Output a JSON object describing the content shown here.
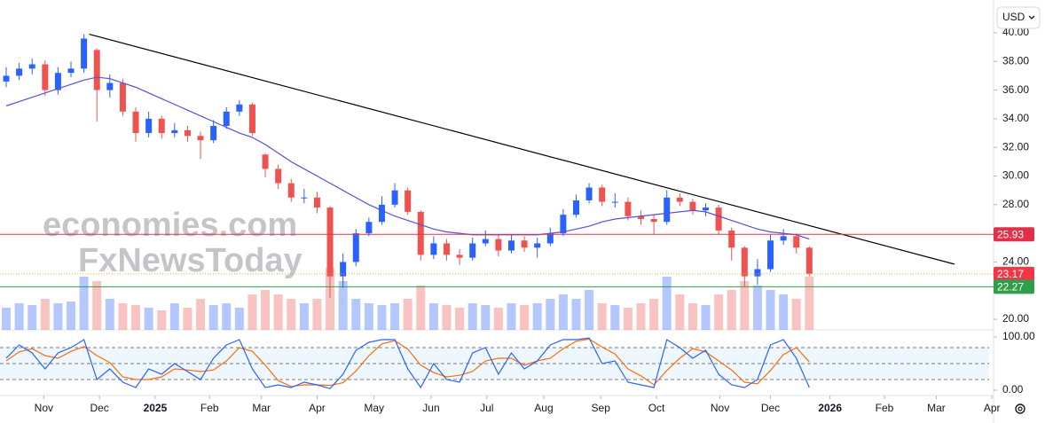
{
  "currency": "USD",
  "chart_data": [
    {
      "type": "candlestick",
      "xlim": [
        -0.48,
        75.88
      ],
      "xticks": [
        {
          "value": 2.9,
          "label": "Nov"
        },
        {
          "value": 7.2,
          "label": "Dec"
        },
        {
          "value": 11.5,
          "label": "2025"
        },
        {
          "value": 15.7,
          "label": "Feb"
        },
        {
          "value": 19.7,
          "label": "Mar"
        },
        {
          "value": 24,
          "label": "Apr"
        },
        {
          "value": 28.4,
          "label": "May"
        },
        {
          "value": 32.8,
          "label": "Jun"
        },
        {
          "value": 37.1,
          "label": "Jul"
        },
        {
          "value": 41.5,
          "label": "Aug"
        },
        {
          "value": 45.9,
          "label": "Sep"
        },
        {
          "value": 50.2,
          "label": "Oct"
        },
        {
          "value": 55.1,
          "label": "Nov"
        },
        {
          "value": 59,
          "label": "Dec"
        },
        {
          "value": 63.6,
          "label": "2026"
        },
        {
          "value": 67.8,
          "label": "Feb"
        },
        {
          "value": 71.8,
          "label": "Mar"
        },
        {
          "value": 76.1,
          "label": "Apr"
        }
      ],
      "ylim": [
        19.26,
        42.29
      ],
      "yticks": [
        {
          "value": 20,
          "label": "20.00"
        },
        {
          "value": 22,
          "label": "22.00"
        },
        {
          "value": 24,
          "label": "24.00"
        },
        {
          "value": 26,
          "label": "26.00"
        },
        {
          "value": 28,
          "label": "28.00"
        },
        {
          "value": 30,
          "label": "30.00"
        },
        {
          "value": 32,
          "label": "32.00"
        },
        {
          "value": 34,
          "label": "34.00"
        },
        {
          "value": 36,
          "label": "36.00"
        },
        {
          "value": 38,
          "label": "38.00"
        },
        {
          "value": 40,
          "label": "40.00"
        }
      ],
      "up_color": "#2962ff",
      "down_color": "#ef5350",
      "open": [
        36.6,
        37,
        37.5,
        37.8,
        36,
        37.2,
        37.5,
        38.8,
        36,
        36.5,
        34.5,
        33,
        34,
        33,
        33.2,
        32.8,
        32.5,
        33.5,
        34.5,
        35,
        31.5,
        30.5,
        29.5,
        28.5,
        28.5,
        27.8,
        23,
        24,
        26,
        26.8,
        28,
        29,
        27.5,
        24.5,
        25.3,
        24.5,
        24.3,
        25.3,
        25.6,
        24.8,
        25.5,
        25,
        25.3,
        26,
        27.3,
        28.3,
        29.2,
        28.2,
        28.2,
        27.2,
        27,
        26.8,
        28.5,
        28.2,
        27.6,
        27.8,
        26.2,
        25,
        23,
        23.5,
        25.5,
        25.8,
        25
      ],
      "high": [
        37.6,
        37.9,
        38.2,
        38.1,
        37.6,
        38,
        39.9,
        38.9,
        37.1,
        36.8,
        34.8,
        34.5,
        34.2,
        33.7,
        33.5,
        33.1,
        33.9,
        34.8,
        35.3,
        35.1,
        31.6,
        30.8,
        29.8,
        29.1,
        28.9,
        27.9,
        24.6,
        26.3,
        27.1,
        28.6,
        29.5,
        29.2,
        27.6,
        25.8,
        25.6,
        24.9,
        25.7,
        26.2,
        25.9,
        25.9,
        25.8,
        25.7,
        26.4,
        27.7,
        28.7,
        29.5,
        29.4,
        28.8,
        28.5,
        27.6,
        27.3,
        29,
        28.8,
        28.4,
        28.1,
        28,
        26.4,
        25.1,
        24.2,
        25.9,
        26.3,
        26,
        25.1
      ],
      "low": [
        36.2,
        36.7,
        37.1,
        35.6,
        35.7,
        36.9,
        37.2,
        33.8,
        35.5,
        34.2,
        32.4,
        32.7,
        32.6,
        32.7,
        32.4,
        31.2,
        32.3,
        33.3,
        34.2,
        32.8,
        29.9,
        29.1,
        28.2,
        28.1,
        27.4,
        21.5,
        22.2,
        23.7,
        25.8,
        26.6,
        27.8,
        27.3,
        24.1,
        24.2,
        24.1,
        23.8,
        24.1,
        25.1,
        24.4,
        24.6,
        24.7,
        24.3,
        25.1,
        25.8,
        27.1,
        28.1,
        27.9,
        27.8,
        26.9,
        26.6,
        25.9,
        26.6,
        27.9,
        27.3,
        27.2,
        25.9,
        24.1,
        22.3,
        22.4,
        23.3,
        25.2,
        24.6,
        23
      ],
      "close": [
        37,
        37.5,
        37.8,
        36,
        37.2,
        37.5,
        39.6,
        36,
        36.5,
        34.5,
        33,
        34,
        33,
        33.2,
        32.8,
        32.5,
        33.5,
        34.5,
        35,
        33,
        30.5,
        29.5,
        28.5,
        28.5,
        27.8,
        23,
        24,
        26,
        26.8,
        28,
        29,
        27.5,
        24.5,
        25.3,
        24.5,
        24.3,
        25.3,
        25.6,
        24.8,
        25.5,
        25,
        25.3,
        26,
        27.3,
        28.3,
        29.2,
        28.2,
        28.2,
        27.2,
        27,
        26.8,
        28.5,
        28.2,
        27.6,
        27.8,
        26.2,
        25,
        23,
        23.5,
        25.5,
        25.8,
        25,
        23.17
      ],
      "moving_average": {
        "color": "#5b4fd6",
        "values": [
          34.9,
          35.2,
          35.5,
          35.8,
          36.1,
          36.4,
          36.7,
          36.9,
          36.8,
          36.5,
          36.2,
          35.8,
          35.4,
          35.0,
          34.6,
          34.2,
          33.8,
          33.4,
          33.0,
          32.7,
          32.2,
          31.6,
          31.0,
          30.5,
          30.0,
          29.5,
          29.0,
          28.5,
          28.0,
          27.6,
          27.2,
          26.9,
          26.6,
          26.3,
          26.1,
          26.0,
          25.9,
          25.9,
          25.9,
          25.9,
          25.9,
          25.9,
          26.0,
          26.1,
          26.3,
          26.5,
          26.8,
          27.0,
          27.1,
          27.2,
          27.3,
          27.4,
          27.5,
          27.6,
          27.5,
          27.2,
          26.9,
          26.6,
          26.3,
          26.1,
          26.0,
          25.9,
          25.6
        ]
      },
      "trendline": {
        "x": [
          6.4,
          73.2
        ],
        "y": [
          39.9,
          23.85
        ],
        "color": "#000000"
      },
      "levels": [
        {
          "value": 25.93,
          "color": "#e0314b",
          "label_color": "#e0314b"
        },
        {
          "value": 23.17,
          "color": "#f5a623",
          "label_color": "#f23645",
          "dotted": true
        },
        {
          "value": 22.27,
          "color": "#2e9e4a",
          "label_color": "#2e9e4a"
        }
      ],
      "watermark": [
        "economies.com",
        "FxNewsToday"
      ]
    },
    {
      "type": "volume",
      "ylim": [
        0,
        100
      ],
      "values": [
        25,
        30,
        28,
        35,
        30,
        32,
        60,
        55,
        35,
        30,
        28,
        25,
        22,
        30,
        25,
        35,
        28,
        30,
        25,
        40,
        45,
        40,
        35,
        30,
        35,
        70,
        55,
        35,
        30,
        28,
        30,
        35,
        50,
        30,
        28,
        25,
        30,
        28,
        25,
        30,
        28,
        30,
        35,
        40,
        35,
        45,
        30,
        28,
        25,
        30,
        35,
        60,
        40,
        30,
        28,
        40,
        45,
        55,
        50,
        45,
        40,
        35,
        60
      ]
    },
    {
      "type": "line",
      "ylim": [
        0,
        100
      ],
      "yticks": [
        {
          "value": 0,
          "label": "0.00"
        },
        {
          "value": 100,
          "label": "100.00"
        }
      ],
      "levels": [
        20,
        50,
        80
      ],
      "band": [
        20,
        80
      ],
      "band_color": "#e3f2fd",
      "series": [
        {
          "color": "#2962ff",
          "values": [
            60,
            85,
            70,
            40,
            70,
            80,
            95,
            20,
            40,
            15,
            5,
            40,
            30,
            50,
            35,
            20,
            60,
            85,
            95,
            40,
            5,
            10,
            5,
            15,
            10,
            3,
            30,
            75,
            90,
            95,
            95,
            40,
            5,
            50,
            20,
            15,
            70,
            80,
            30,
            70,
            40,
            55,
            85,
            95,
            95,
            98,
            50,
            55,
            15,
            10,
            5,
            95,
            80,
            60,
            75,
            30,
            10,
            5,
            20,
            85,
            95,
            60,
            5
          ]
        },
        {
          "color": "#ff6d00",
          "values": [
            55,
            72,
            78,
            65,
            60,
            73,
            82,
            65,
            52,
            25,
            20,
            20,
            25,
            40,
            38,
            35,
            38,
            55,
            80,
            73,
            47,
            18,
            7,
            10,
            10,
            9,
            14,
            36,
            65,
            87,
            93,
            77,
            47,
            33,
            25,
            28,
            35,
            55,
            60,
            60,
            47,
            55,
            60,
            78,
            92,
            96,
            81,
            68,
            40,
            27,
            10,
            37,
            60,
            78,
            72,
            55,
            38,
            15,
            12,
            37,
            67,
            80,
            53
          ]
        }
      ]
    }
  ]
}
